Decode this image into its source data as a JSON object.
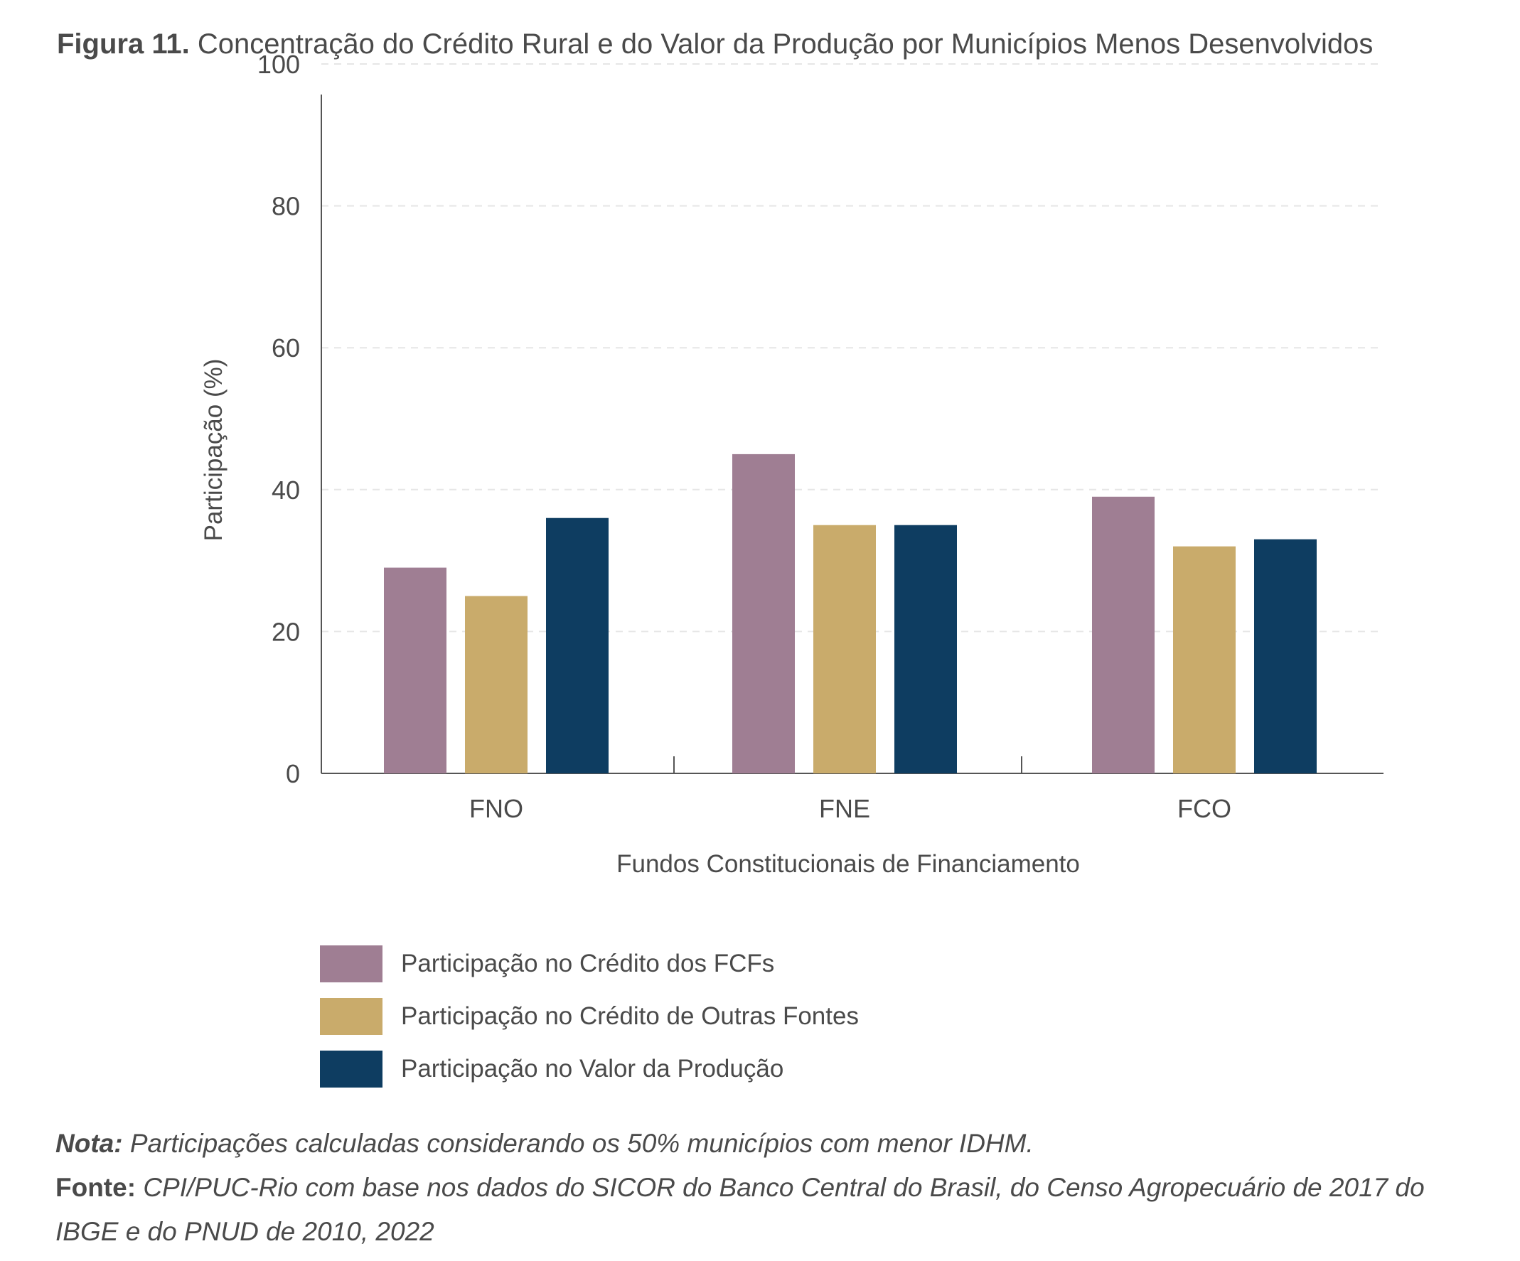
{
  "figure": {
    "label": "Figura 11.",
    "title": "Concentração do Crédito Rural e do Valor da Produção por Municípios Menos Desenvolvidos"
  },
  "colors": {
    "credito_fcfs": "#9f7e93",
    "credito_outras": "#c9ab6b",
    "valor_producao": "#0e3d61",
    "grid": "#e6e6e6",
    "axis": "#555555"
  },
  "chart_data": {
    "type": "bar",
    "categories": [
      "FNO",
      "FNE",
      "FCO"
    ],
    "series": [
      {
        "name": "Participação no Crédito dos FCFs",
        "values": [
          29,
          45,
          39
        ]
      },
      {
        "name": "Participação no Crédito de Outras Fontes",
        "values": [
          25,
          35,
          32
        ]
      },
      {
        "name": "Participação no Valor da Produção",
        "values": [
          36,
          35,
          33
        ]
      }
    ],
    "xlabel": "Fundos Constitucionais de Financiamento",
    "ylabel": "Participação (%)",
    "ylim": [
      0,
      100
    ],
    "yticks": [
      "0",
      "20",
      "40",
      "60",
      "80",
      "100"
    ],
    "grid": true,
    "legend_position": "bottom"
  },
  "note": {
    "label": "Nota:",
    "text": "Participações calculadas considerando os 50% municípios com menor IDHM."
  },
  "source": {
    "label": "Fonte:",
    "text": "CPI/PUC-Rio com base nos dados do SICOR do Banco Central do Brasil, do Censo Agropecuário de 2017 do IBGE e do PNUD de 2010, 2022"
  }
}
